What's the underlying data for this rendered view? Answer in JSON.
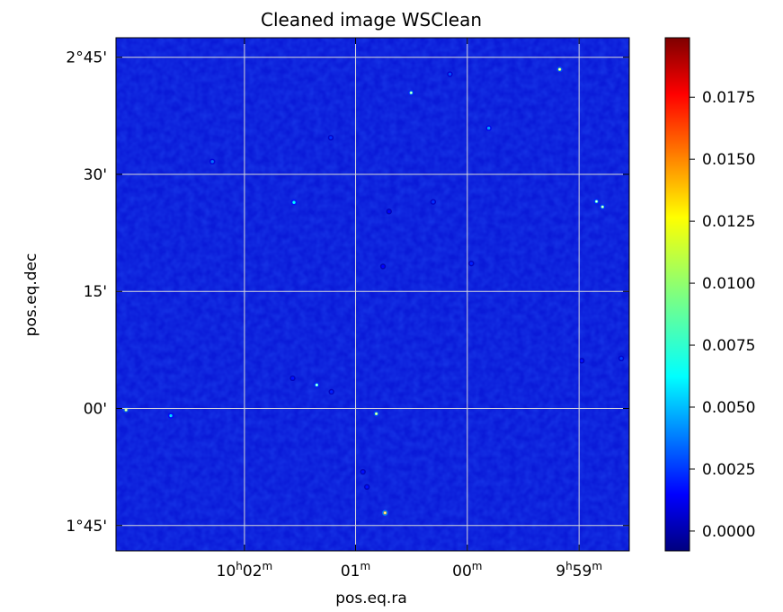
{
  "chart_data": {
    "type": "heatmap",
    "title": "Cleaned image WSClean",
    "xlabel": "pos.eq.ra",
    "ylabel": "pos.eq.dec",
    "x_axis": {
      "unit": "RA (minutes of time)",
      "lim": [
        10.0525,
        9.9758
      ],
      "ticks": [
        {
          "value": 10.0333,
          "h": "10",
          "m": "02"
        },
        {
          "value": 10.0167,
          "h": "",
          "m": "01"
        },
        {
          "value": 10.0,
          "h": "",
          "m": "00"
        },
        {
          "value": 9.9833,
          "h": "9",
          "m": "59"
        }
      ]
    },
    "y_axis": {
      "unit": "Dec (degrees)",
      "lim": [
        1.6958,
        2.7917
      ],
      "ticks": [
        {
          "value": 2.75,
          "label": "2°45'"
        },
        {
          "value": 2.5,
          "label": "30'"
        },
        {
          "value": 2.25,
          "label": "15'"
        },
        {
          "value": 2.0,
          "label": "00'"
        },
        {
          "value": 1.75,
          "label": "1°45'"
        }
      ]
    },
    "grid": true,
    "colormap": "jet",
    "colorbar": {
      "range": [
        -0.0008,
        0.0199
      ],
      "ticks": [
        0.0,
        0.0025,
        0.005,
        0.0075,
        0.01,
        0.0125,
        0.015,
        0.0175
      ],
      "tick_labels": [
        "0.0000",
        "0.0025",
        "0.0050",
        "0.0075",
        "0.0100",
        "0.0125",
        "0.0150",
        "0.0175"
      ]
    },
    "background_level": 0.0,
    "sources": [
      {
        "ra": 9.9862,
        "dec": 2.7242,
        "flux": 0.0062
      },
      {
        "ra": 10.0084,
        "dec": 2.6742,
        "flux": 0.005
      },
      {
        "ra": 10.0026,
        "dec": 2.7139,
        "flux": 0.0018
      },
      {
        "ra": 9.9968,
        "dec": 2.5986,
        "flux": 0.0028
      },
      {
        "ra": 10.0204,
        "dec": 2.5783,
        "flux": 0.0014
      },
      {
        "ra": 10.0381,
        "dec": 2.5272,
        "flux": 0.0022
      },
      {
        "ra": 10.0259,
        "dec": 2.4401,
        "flux": 0.004
      },
      {
        "ra": 10.0051,
        "dec": 2.4411,
        "flux": 0.0014
      },
      {
        "ra": 9.9807,
        "dec": 2.4421,
        "flux": 0.0048
      },
      {
        "ra": 9.9798,
        "dec": 2.4306,
        "flux": 0.0052
      },
      {
        "ra": 9.9994,
        "dec": 2.3097,
        "flux": 0.0012
      },
      {
        "ra": 10.0126,
        "dec": 2.3033,
        "flux": 0.0008
      },
      {
        "ra": 10.0225,
        "dec": 2.0502,
        "flux": 0.0046
      },
      {
        "ra": 10.0203,
        "dec": 2.0356,
        "flux": 0.0012
      },
      {
        "ra": 10.0261,
        "dec": 2.0646,
        "flux": 0.001
      },
      {
        "ra": 10.051,
        "dec": 1.9969,
        "flux": 0.006
      },
      {
        "ra": 10.0443,
        "dec": 1.9846,
        "flux": 0.0036
      },
      {
        "ra": 10.0136,
        "dec": 1.9887,
        "flux": 0.0058
      },
      {
        "ra": 10.0156,
        "dec": 1.8646,
        "flux": 0.001
      },
      {
        "ra": 10.015,
        "dec": 1.8324,
        "flux": 0.001
      },
      {
        "ra": 10.0123,
        "dec": 1.777,
        "flux": 0.0082
      },
      {
        "ra": 9.9829,
        "dec": 2.1019,
        "flux": 0.001
      },
      {
        "ra": 9.977,
        "dec": 2.1069,
        "flux": 0.0016
      },
      {
        "ra": 10.0117,
        "dec": 2.4206,
        "flux": 0.0008
      }
    ]
  }
}
